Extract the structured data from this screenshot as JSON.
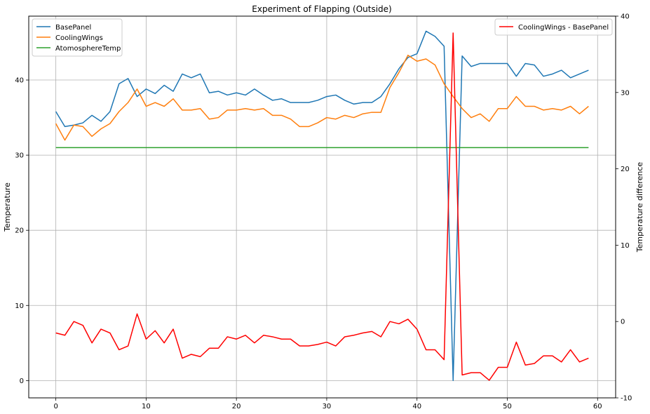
{
  "chart_data": {
    "type": "line",
    "title": "Experiment of Flapping (Outside)",
    "xlabel": "",
    "ylabel": "Temperature",
    "y2label": "Temperature difference",
    "xlim": [
      -3,
      62
    ],
    "ylim": [
      -2.3,
      48.5
    ],
    "y2lim": [
      -10,
      40
    ],
    "grid": true,
    "xticks": [
      0,
      10,
      20,
      30,
      40,
      50,
      60
    ],
    "yticks": [
      0,
      10,
      20,
      30,
      40
    ],
    "y2ticks": [
      -10,
      0,
      10,
      20,
      30,
      40
    ],
    "legend_left": "top-left",
    "legend_right": "top-right",
    "x": [
      0,
      1,
      2,
      3,
      4,
      5,
      6,
      7,
      8,
      9,
      10,
      11,
      12,
      13,
      14,
      15,
      16,
      17,
      18,
      19,
      20,
      21,
      22,
      23,
      24,
      25,
      26,
      27,
      28,
      29,
      30,
      31,
      32,
      33,
      34,
      35,
      36,
      37,
      38,
      39,
      40,
      41,
      42,
      43,
      44,
      45,
      46,
      47,
      48,
      49,
      50,
      51,
      52,
      53,
      54,
      55,
      56,
      57,
      58,
      59
    ],
    "series": [
      {
        "name": "BasePanel",
        "axis": "left",
        "color": "#1f77b4",
        "values": [
          35.8,
          33.8,
          34.0,
          34.3,
          35.3,
          34.5,
          35.8,
          39.5,
          40.2,
          37.8,
          38.8,
          38.2,
          39.3,
          38.5,
          40.8,
          40.3,
          40.8,
          38.3,
          38.5,
          38.0,
          38.3,
          38.0,
          38.8,
          38.0,
          37.3,
          37.5,
          37.0,
          37.0,
          37.0,
          37.3,
          37.8,
          38.0,
          37.3,
          36.8,
          37.0,
          37.0,
          37.8,
          39.5,
          41.5,
          43.0,
          43.5,
          46.5,
          45.8,
          44.5,
          0.0,
          43.2,
          41.8,
          42.2,
          42.2,
          42.2,
          42.2,
          40.5,
          42.2,
          42.0,
          40.5,
          40.8,
          41.3,
          40.3,
          40.8,
          41.3
        ]
      },
      {
        "name": "CoolingWings",
        "axis": "left",
        "color": "#ff7f0e",
        "values": [
          34.2,
          32.0,
          34.0,
          33.8,
          32.5,
          33.5,
          34.2,
          35.8,
          37.0,
          38.8,
          36.5,
          37.0,
          36.5,
          37.5,
          36.0,
          36.0,
          36.2,
          34.8,
          35.0,
          36.0,
          36.0,
          36.2,
          36.0,
          36.2,
          35.3,
          35.3,
          34.8,
          33.8,
          33.8,
          34.3,
          35.0,
          34.8,
          35.3,
          35.0,
          35.5,
          35.7,
          35.7,
          39.0,
          41.0,
          43.3,
          42.5,
          42.8,
          42.0,
          39.5,
          37.8,
          36.2,
          35.0,
          35.5,
          34.5,
          36.2,
          36.2,
          37.8,
          36.5,
          36.5,
          36.0,
          36.2,
          36.0,
          36.5,
          35.5,
          36.5
        ]
      },
      {
        "name": "AtomosphereTemp",
        "axis": "left",
        "color": "#2ca02c",
        "values": [
          31,
          31,
          31,
          31,
          31,
          31,
          31,
          31,
          31,
          31,
          31,
          31,
          31,
          31,
          31,
          31,
          31,
          31,
          31,
          31,
          31,
          31,
          31,
          31,
          31,
          31,
          31,
          31,
          31,
          31,
          31,
          31,
          31,
          31,
          31,
          31,
          31,
          31,
          31,
          31,
          31,
          31,
          31,
          31,
          31,
          31,
          31,
          31,
          31,
          31,
          31,
          31,
          31,
          31,
          31,
          31,
          31,
          31,
          31,
          31
        ]
      },
      {
        "name": "CoolingWings - BasePanel",
        "axis": "right",
        "color": "#ff0000",
        "values": [
          -1.5,
          -1.8,
          0.0,
          -0.5,
          -2.8,
          -1.0,
          -1.5,
          -3.7,
          -3.2,
          1.0,
          -2.3,
          -1.2,
          -2.8,
          -1.0,
          -4.8,
          -4.3,
          -4.6,
          -3.5,
          -3.5,
          -2.0,
          -2.3,
          -1.8,
          -2.8,
          -1.8,
          -2.0,
          -2.3,
          -2.3,
          -3.2,
          -3.2,
          -3.0,
          -2.7,
          -3.2,
          -2.0,
          -1.8,
          -1.5,
          -1.3,
          -2.0,
          0.0,
          -0.3,
          0.3,
          -1.0,
          -3.7,
          -3.7,
          -5.0,
          37.8,
          -7.0,
          -6.7,
          -6.7,
          -7.7,
          -6.0,
          -6.0,
          -2.7,
          -5.7,
          -5.5,
          -4.5,
          -4.5,
          -5.3,
          -3.7,
          -5.3,
          -4.8
        ]
      }
    ]
  }
}
